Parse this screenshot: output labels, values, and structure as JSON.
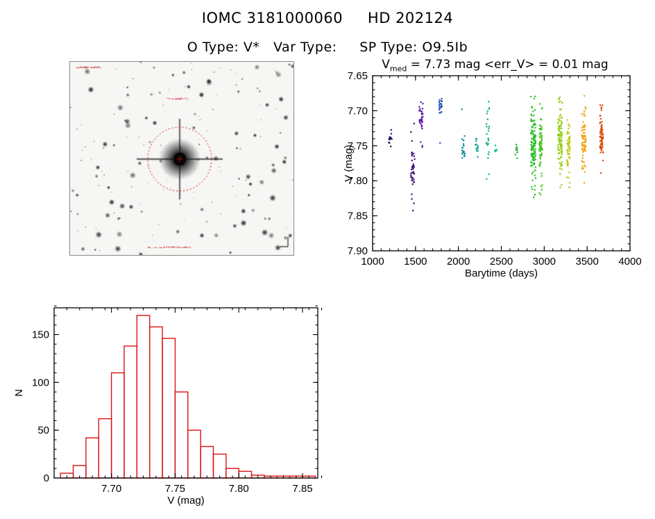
{
  "header": {
    "title": "IOMC 3181000060     HD 202124",
    "subtitle": "O Type: V*   Var Type:     SP Type: O9.5Ib"
  },
  "finding_chart": {
    "background": "#f6f6f4",
    "aperture_color": "#cc0000",
    "annotation_color": "#cc0000"
  },
  "chart_data": [
    {
      "type": "scatter",
      "name": "light_curve",
      "title": {
        "base": "V",
        "sub": "med",
        "rest": " = 7.73 mag <err_V> = 0.01 mag"
      },
      "xlabel": "Barytime (days)",
      "ylabel": "V (mag)",
      "xlim": [
        1000,
        4000
      ],
      "ylim": [
        7.65,
        7.9
      ],
      "y_direction": "increasing-downward",
      "xticks": [
        1000,
        1500,
        2000,
        2500,
        3000,
        3500,
        4000
      ],
      "xtick_labels": [
        "1000",
        "1500",
        "2000",
        "2500",
        "3000",
        "3500",
        "4000"
      ],
      "yticks": [
        7.65,
        7.7,
        7.75,
        7.8,
        7.85,
        7.9
      ],
      "ytick_labels": [
        "7.65",
        "7.70",
        "7.75",
        "7.80",
        "7.85",
        "7.90"
      ],
      "x_minor_step": 100,
      "y_minor_step": 0.01,
      "clusters": [
        {
          "x": 1205,
          "xs": 18,
          "color": "#2a1060",
          "n": 16,
          "range": [
            7.715,
            7.77
          ],
          "core": [
            7.72,
            7.755
          ]
        },
        {
          "x": 1468,
          "xs": 22,
          "color": "#401080",
          "n": 42,
          "range": [
            7.7,
            7.85
          ],
          "core": [
            7.755,
            7.815
          ]
        },
        {
          "x": 1565,
          "xs": 22,
          "color": "#5a18a8",
          "n": 36,
          "range": [
            7.685,
            7.805
          ],
          "core": [
            7.69,
            7.73
          ]
        },
        {
          "x": 1792,
          "xs": 18,
          "color": "#2050b0",
          "n": 24,
          "range": [
            7.675,
            7.8
          ],
          "core": [
            7.68,
            7.705
          ]
        },
        {
          "x": 2058,
          "xs": 18,
          "color": "#0e8898",
          "n": 18,
          "range": [
            7.69,
            7.785
          ],
          "core": [
            7.725,
            7.775
          ]
        },
        {
          "x": 2212,
          "xs": 15,
          "color": "#0aa392",
          "n": 14,
          "range": [
            7.735,
            7.77
          ],
          "core": [
            7.74,
            7.762
          ]
        },
        {
          "x": 2342,
          "xs": 18,
          "color": "#0cb47e",
          "n": 24,
          "range": [
            7.675,
            7.8
          ],
          "core": [
            7.7,
            7.78
          ]
        },
        {
          "x": 2438,
          "xs": 12,
          "color": "#0cb89a",
          "n": 6,
          "range": [
            7.74,
            7.77
          ],
          "core": [
            7.745,
            7.765
          ]
        },
        {
          "x": 2678,
          "xs": 14,
          "color": "#2fae44",
          "n": 10,
          "range": [
            7.745,
            7.772
          ],
          "core": [
            7.75,
            7.765
          ]
        },
        {
          "x": 2872,
          "xs": 28,
          "color": "#2ebe2e",
          "n": 130,
          "range": [
            7.675,
            7.83
          ],
          "core": [
            7.7,
            7.795
          ]
        },
        {
          "x": 2960,
          "xs": 18,
          "color": "#44c61e",
          "n": 70,
          "range": [
            7.68,
            7.82
          ],
          "core": [
            7.705,
            7.785
          ]
        },
        {
          "x": 3185,
          "xs": 26,
          "color": "#96ce18",
          "n": 110,
          "range": [
            7.675,
            7.825
          ],
          "core": [
            7.7,
            7.79
          ]
        },
        {
          "x": 3282,
          "xs": 18,
          "color": "#b8cc12",
          "n": 60,
          "range": [
            7.68,
            7.81
          ],
          "core": [
            7.705,
            7.785
          ]
        },
        {
          "x": 3462,
          "xs": 24,
          "color": "#f2a414",
          "n": 80,
          "range": [
            7.678,
            7.808
          ],
          "core": [
            7.7,
            7.785
          ]
        },
        {
          "x": 3668,
          "xs": 20,
          "color": "#dd4a0c",
          "n": 70,
          "range": [
            7.68,
            7.79
          ],
          "core": [
            7.7,
            7.775
          ]
        }
      ]
    },
    {
      "type": "histogram",
      "name": "v_distribution",
      "xlabel": "V (mag)",
      "ylabel": "N",
      "color": "#dd1111",
      "bin_start": 7.66,
      "bin_width": 0.01,
      "counts": [
        5,
        13,
        42,
        62,
        110,
        138,
        170,
        158,
        146,
        90,
        50,
        33,
        25,
        10,
        7,
        3,
        2,
        2,
        2,
        2
      ],
      "xlim": [
        7.655,
        7.862
      ],
      "ylim": [
        0,
        178
      ],
      "xticks": [
        7.7,
        7.75,
        7.8,
        7.85
      ],
      "xtick_labels": [
        "7.70",
        "7.75",
        "7.80",
        "7.85"
      ],
      "yticks": [
        0,
        50,
        100,
        150
      ],
      "ytick_labels": [
        "0",
        "50",
        "100",
        "150"
      ],
      "x_minor_step": 0.01,
      "y_minor_step": 10
    }
  ]
}
